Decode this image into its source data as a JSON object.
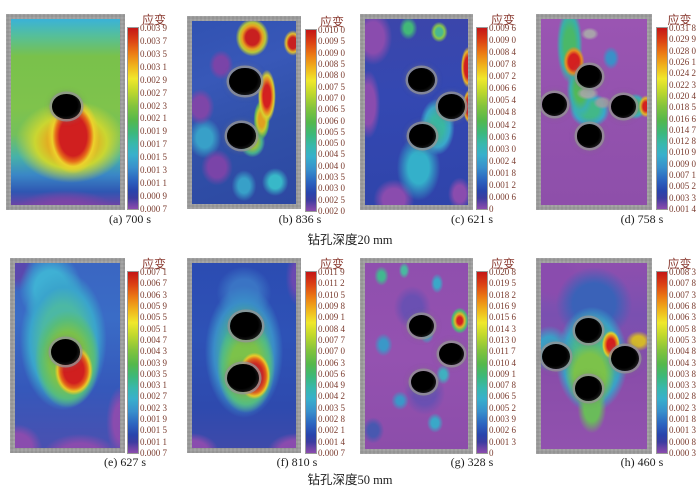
{
  "figure": {
    "strain_label": "应变",
    "group_labels": {
      "row1": "钻孔深度20 mm",
      "row2": "钻孔深度50 mm"
    },
    "panels": {
      "a": {
        "caption": "(a) 700 s",
        "ticks": [
          "0.003 9",
          "0.003 7",
          "0.003 5",
          "0.003 1",
          "0.002 9",
          "0.002 7",
          "0.002 3",
          "0.002 1",
          "0.001 9",
          "0.001 7",
          "0.001 5",
          "0.001 3",
          "0.001 1",
          "0.000 9",
          "0.000 7"
        ]
      },
      "b": {
        "caption": "(b) 836 s",
        "ticks": [
          "0.010 0",
          "0.009 5",
          "0.009 0",
          "0.008 5",
          "0.008 0",
          "0.007 5",
          "0.007 0",
          "0.006 5",
          "0.006 0",
          "0.005 5",
          "0.005 0",
          "0.004 5",
          "0.004 0",
          "0.003 5",
          "0.003 0",
          "0.002 5",
          "0.002 0"
        ]
      },
      "c": {
        "caption": "(c) 621 s",
        "ticks": [
          "0.009 6",
          "0.009 0",
          "0.008 4",
          "0.007 8",
          "0.007 2",
          "0.006 6",
          "0.005 4",
          "0.004 8",
          "0.004 2",
          "0.003 6",
          "0.003 0",
          "0.002 4",
          "0.001 8",
          "0.001 2",
          "0.000 6",
          "0"
        ]
      },
      "d": {
        "caption": "(d) 758 s",
        "ticks": [
          "0.031 8",
          "0.029 9",
          "0.028 0",
          "0.026 1",
          "0.024 2",
          "0.022 3",
          "0.020 4",
          "0.018 5",
          "0.016 6",
          "0.014 7",
          "0.012 8",
          "0.010 9",
          "0.009 0",
          "0.007 1",
          "0.005 2",
          "0.003 3",
          "0.001 4"
        ]
      },
      "e": {
        "caption": "(e) 627 s",
        "ticks": [
          "0.007 1",
          "0.006 7",
          "0.006 3",
          "0.005 9",
          "0.005 5",
          "0.005 1",
          "0.004 7",
          "0.004 3",
          "0.003 9",
          "0.003 5",
          "0.003 1",
          "0.002 7",
          "0.002 3",
          "0.001 9",
          "0.001 5",
          "0.001 1",
          "0.000 7"
        ]
      },
      "f": {
        "caption": "(f) 810 s",
        "ticks": [
          "0.011 9",
          "0.011 2",
          "0.010 5",
          "0.009 8",
          "0.009 1",
          "0.008 4",
          "0.007 7",
          "0.007 0",
          "0.006 3",
          "0.005 6",
          "0.004 9",
          "0.004 2",
          "0.003 5",
          "0.002 8",
          "0.002 1",
          "0.001 4",
          "0.000 7"
        ]
      },
      "g": {
        "caption": "(g) 328 s",
        "ticks": [
          "0.020 8",
          "0.019 5",
          "0.018 2",
          "0.016 9",
          "0.015 6",
          "0.014 3",
          "0.013 0",
          "0.011 7",
          "0.010 4",
          "0.009 1",
          "0.007 8",
          "0.006 5",
          "0.005 2",
          "0.003 9",
          "0.002 6",
          "0.001 3",
          "0"
        ]
      },
      "h": {
        "caption": "(h) 460 s",
        "ticks": [
          "0.008 3",
          "0.007 8",
          "0.007 3",
          "0.006 8",
          "0.006 3",
          "0.005 8",
          "0.005 3",
          "0.004 8",
          "0.004 3",
          "0.003 8",
          "0.003 3",
          "0.002 8",
          "0.002 3",
          "0.001 8",
          "0.001 3",
          "0.000 8",
          "0.000 3"
        ]
      }
    }
  },
  "chart_data": [
    {
      "type": "heatmap",
      "panel": "(a)",
      "time_s": 700,
      "group": "钻孔深度20 mm",
      "colorbar_label": "应变",
      "colorbar_ticks": [
        0.0039,
        0.0037,
        0.0035,
        0.0031,
        0.0029,
        0.0027,
        0.0023,
        0.0021,
        0.0019,
        0.0017,
        0.0015,
        0.0013,
        0.0011,
        0.0009,
        0.0007
      ],
      "range": [
        0.0007,
        0.0039
      ],
      "colormap": "rainbow (red=max, purple=min)",
      "drill_holes": 1,
      "description": "single hole mid-specimen; red strain concentration lobe below hole, cyan top band, green field, purple bottom corners"
    },
    {
      "type": "heatmap",
      "panel": "(b)",
      "time_s": 836,
      "group": "钻孔深度20 mm",
      "colorbar_label": "应变",
      "colorbar_ticks": [
        0.01,
        0.0095,
        0.009,
        0.0085,
        0.008,
        0.0075,
        0.007,
        0.0065,
        0.006,
        0.0055,
        0.005,
        0.0045,
        0.004,
        0.0035,
        0.003,
        0.0025,
        0.002
      ],
      "range": [
        0.002,
        0.01
      ],
      "colormap": "rainbow (red=max, purple=min)",
      "drill_holes": 2,
      "description": "two vertical holes; red-yellow arc right of holes and red patch near top, blue/purple mottled field"
    },
    {
      "type": "heatmap",
      "panel": "(c)",
      "time_s": 621,
      "group": "钻孔深度20 mm",
      "colorbar_label": "应变",
      "colorbar_ticks": [
        0.0096,
        0.009,
        0.0084,
        0.0078,
        0.0072,
        0.0066,
        0.0054,
        0.0048,
        0.0042,
        0.0036,
        0.003,
        0.0024,
        0.0018,
        0.0012,
        0.0006,
        0
      ],
      "range": [
        0,
        0.0096
      ],
      "colormap": "rainbow (red=max, purple=min)",
      "drill_holes": 3,
      "description": "three staggered holes; blue field with purple patches, red concentrations at right edge, cyan zone below middle"
    },
    {
      "type": "heatmap",
      "panel": "(d)",
      "time_s": 758,
      "group": "钻孔深度20 mm",
      "colorbar_label": "应变",
      "colorbar_ticks": [
        0.0318,
        0.0299,
        0.028,
        0.0261,
        0.0242,
        0.0223,
        0.0204,
        0.0185,
        0.0166,
        0.0147,
        0.0128,
        0.0109,
        0.009,
        0.0071,
        0.0052,
        0.0033,
        0.0014
      ],
      "range": [
        0.0014,
        0.0318
      ],
      "colormap": "rainbow (red=max, purple=min)",
      "drill_holes": 4,
      "description": "four holes with connecting crack; purple field, green-cyan diagonal band from top-left with red core, red spot at right edge"
    },
    {
      "type": "heatmap",
      "panel": "(e)",
      "time_s": 627,
      "group": "钻孔深度50 mm",
      "colorbar_label": "应变",
      "colorbar_ticks": [
        0.0071,
        0.0067,
        0.0063,
        0.0059,
        0.0055,
        0.0051,
        0.0047,
        0.0043,
        0.0039,
        0.0035,
        0.0031,
        0.0027,
        0.0023,
        0.0019,
        0.0015,
        0.0011,
        0.0007
      ],
      "range": [
        0.0007,
        0.0071
      ],
      "colormap": "rainbow (red=max, purple=min)",
      "drill_holes": 1,
      "description": "single hole; red lobe below-right of hole inside green/teal zone, blue surround, purple corners"
    },
    {
      "type": "heatmap",
      "panel": "(f)",
      "time_s": 810,
      "group": "钻孔深度50 mm",
      "colorbar_label": "应变",
      "colorbar_ticks": [
        0.0119,
        0.0112,
        0.0105,
        0.0098,
        0.0091,
        0.0084,
        0.0077,
        0.007,
        0.0063,
        0.0056,
        0.0049,
        0.0042,
        0.0035,
        0.0028,
        0.0021,
        0.0014,
        0.0007
      ],
      "range": [
        0.0007,
        0.0119
      ],
      "colormap": "rainbow (red=max, purple=min)",
      "drill_holes": 2,
      "description": "two vertical holes; red lobe right of lower hole inside green ring, dark blue field, purple corners"
    },
    {
      "type": "heatmap",
      "panel": "(g)",
      "time_s": 328,
      "group": "钻孔深度50 mm",
      "colorbar_label": "应变",
      "colorbar_ticks": [
        0.0208,
        0.0195,
        0.0182,
        0.0169,
        0.0156,
        0.0143,
        0.013,
        0.0117,
        0.0104,
        0.0091,
        0.0078,
        0.0065,
        0.0052,
        0.0039,
        0.0026,
        0.0013,
        0
      ],
      "range": [
        0,
        0.0208
      ],
      "colormap": "rainbow (red=max, purple=min)",
      "drill_holes": 3,
      "description": "three holes; mottled purple field with scattered small cyan/green patches and a red spot near right edge"
    },
    {
      "type": "heatmap",
      "panel": "(h)",
      "time_s": 460,
      "group": "钻孔深度50 mm",
      "colorbar_label": "应变",
      "colorbar_ticks": [
        0.0083,
        0.0078,
        0.0073,
        0.0068,
        0.0063,
        0.0058,
        0.0053,
        0.0048,
        0.0043,
        0.0038,
        0.0033,
        0.0028,
        0.0023,
        0.0018,
        0.0013,
        0.0008,
        0.0003
      ],
      "range": [
        0.0003,
        0.0083
      ],
      "colormap": "rainbow (red=max, purple=min)",
      "drill_holes": 4,
      "description": "four holes; green-teal central zone with red spot left of right hole, blue upper band, purple background"
    }
  ]
}
